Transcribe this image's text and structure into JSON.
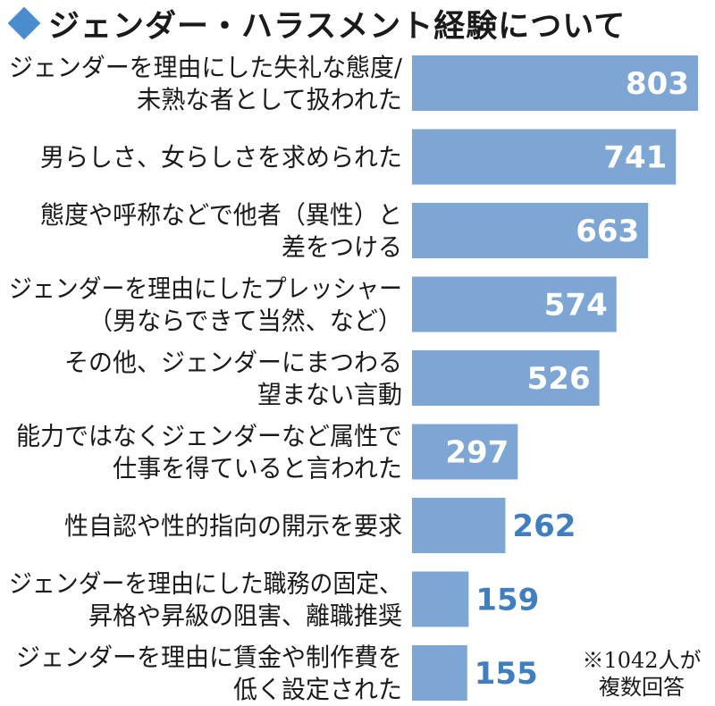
{
  "title": "ジェンダー・ハラスメント経験について",
  "note": "※1042人が複数回答",
  "chart_data": {
    "type": "bar",
    "orientation": "horizontal",
    "title": "ジェンダー・ハラスメント経験について",
    "categories": [
      [
        "ジェンダーを理由にした失礼な態度/",
        "未熟な者として扱われた"
      ],
      [
        "男らしさ、女らしさを求められた"
      ],
      [
        "態度や呼称などで他者（異性）と",
        "差をつける"
      ],
      [
        "ジェンダーを理由にしたプレッシャー",
        "（男ならできて当然、など）"
      ],
      [
        "その他、ジェンダーにまつわる",
        "望まない言動"
      ],
      [
        "能力ではなくジェンダーなど属性で",
        "仕事を得ていると言われた"
      ],
      [
        "性自認や性的指向の開示を要求"
      ],
      [
        "ジェンダーを理由にした職務の固定、",
        "昇格や昇級の阻害、離職推奨"
      ],
      [
        "ジェンダーを理由に賃金や制作費を",
        "低く設定された"
      ]
    ],
    "values": [
      803,
      741,
      663,
      574,
      526,
      297,
      262,
      159,
      155
    ],
    "bar_color": "#7ea6d5",
    "label_inside_color": "#ffffff",
    "label_outside_color": "#3f7fc0",
    "note": "※1042人が複数回答"
  }
}
